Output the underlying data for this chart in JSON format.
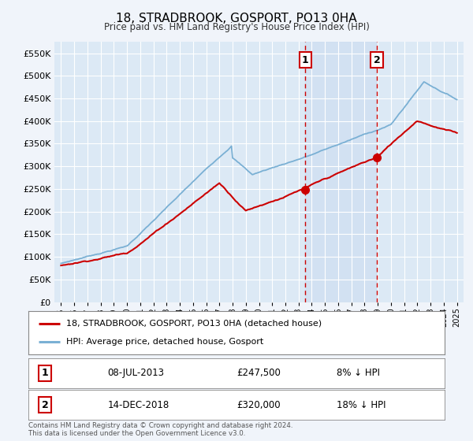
{
  "title": "18, STRADBROOK, GOSPORT, PO13 0HA",
  "subtitle": "Price paid vs. HM Land Registry's House Price Index (HPI)",
  "background_color": "#f0f4fa",
  "plot_bg_color": "#dce9f5",
  "red_line_label": "18, STRADBROOK, GOSPORT, PO13 0HA (detached house)",
  "blue_line_label": "HPI: Average price, detached house, Gosport",
  "annotation1": {
    "num": "1",
    "date": "08-JUL-2013",
    "price": "£247,500",
    "pct": "8% ↓ HPI"
  },
  "annotation2": {
    "num": "2",
    "date": "14-DEC-2018",
    "price": "£320,000",
    "pct": "18% ↓ HPI"
  },
  "footer": "Contains HM Land Registry data © Crown copyright and database right 2024.\nThis data is licensed under the Open Government Licence v3.0.",
  "ylim": [
    0,
    575000
  ],
  "yticks": [
    0,
    50000,
    100000,
    150000,
    200000,
    250000,
    300000,
    350000,
    400000,
    450000,
    500000,
    550000
  ],
  "ytick_labels": [
    "£0",
    "£50K",
    "£100K",
    "£150K",
    "£200K",
    "£250K",
    "£300K",
    "£350K",
    "£400K",
    "£450K",
    "£500K",
    "£550K"
  ],
  "red_color": "#cc0000",
  "blue_color": "#7ab0d4",
  "point1_x": 2013.52,
  "point1_y": 247500,
  "point2_x": 2018.95,
  "point2_y": 320000,
  "xmin": 1994.5,
  "xmax": 2025.5,
  "xticks": [
    1995,
    1996,
    1997,
    1998,
    1999,
    2000,
    2001,
    2002,
    2003,
    2004,
    2005,
    2006,
    2007,
    2008,
    2009,
    2010,
    2011,
    2012,
    2013,
    2014,
    2015,
    2016,
    2017,
    2018,
    2019,
    2020,
    2021,
    2022,
    2023,
    2024,
    2025
  ],
  "shade_color": "#ccddf0",
  "vline_color": "#cc0000"
}
